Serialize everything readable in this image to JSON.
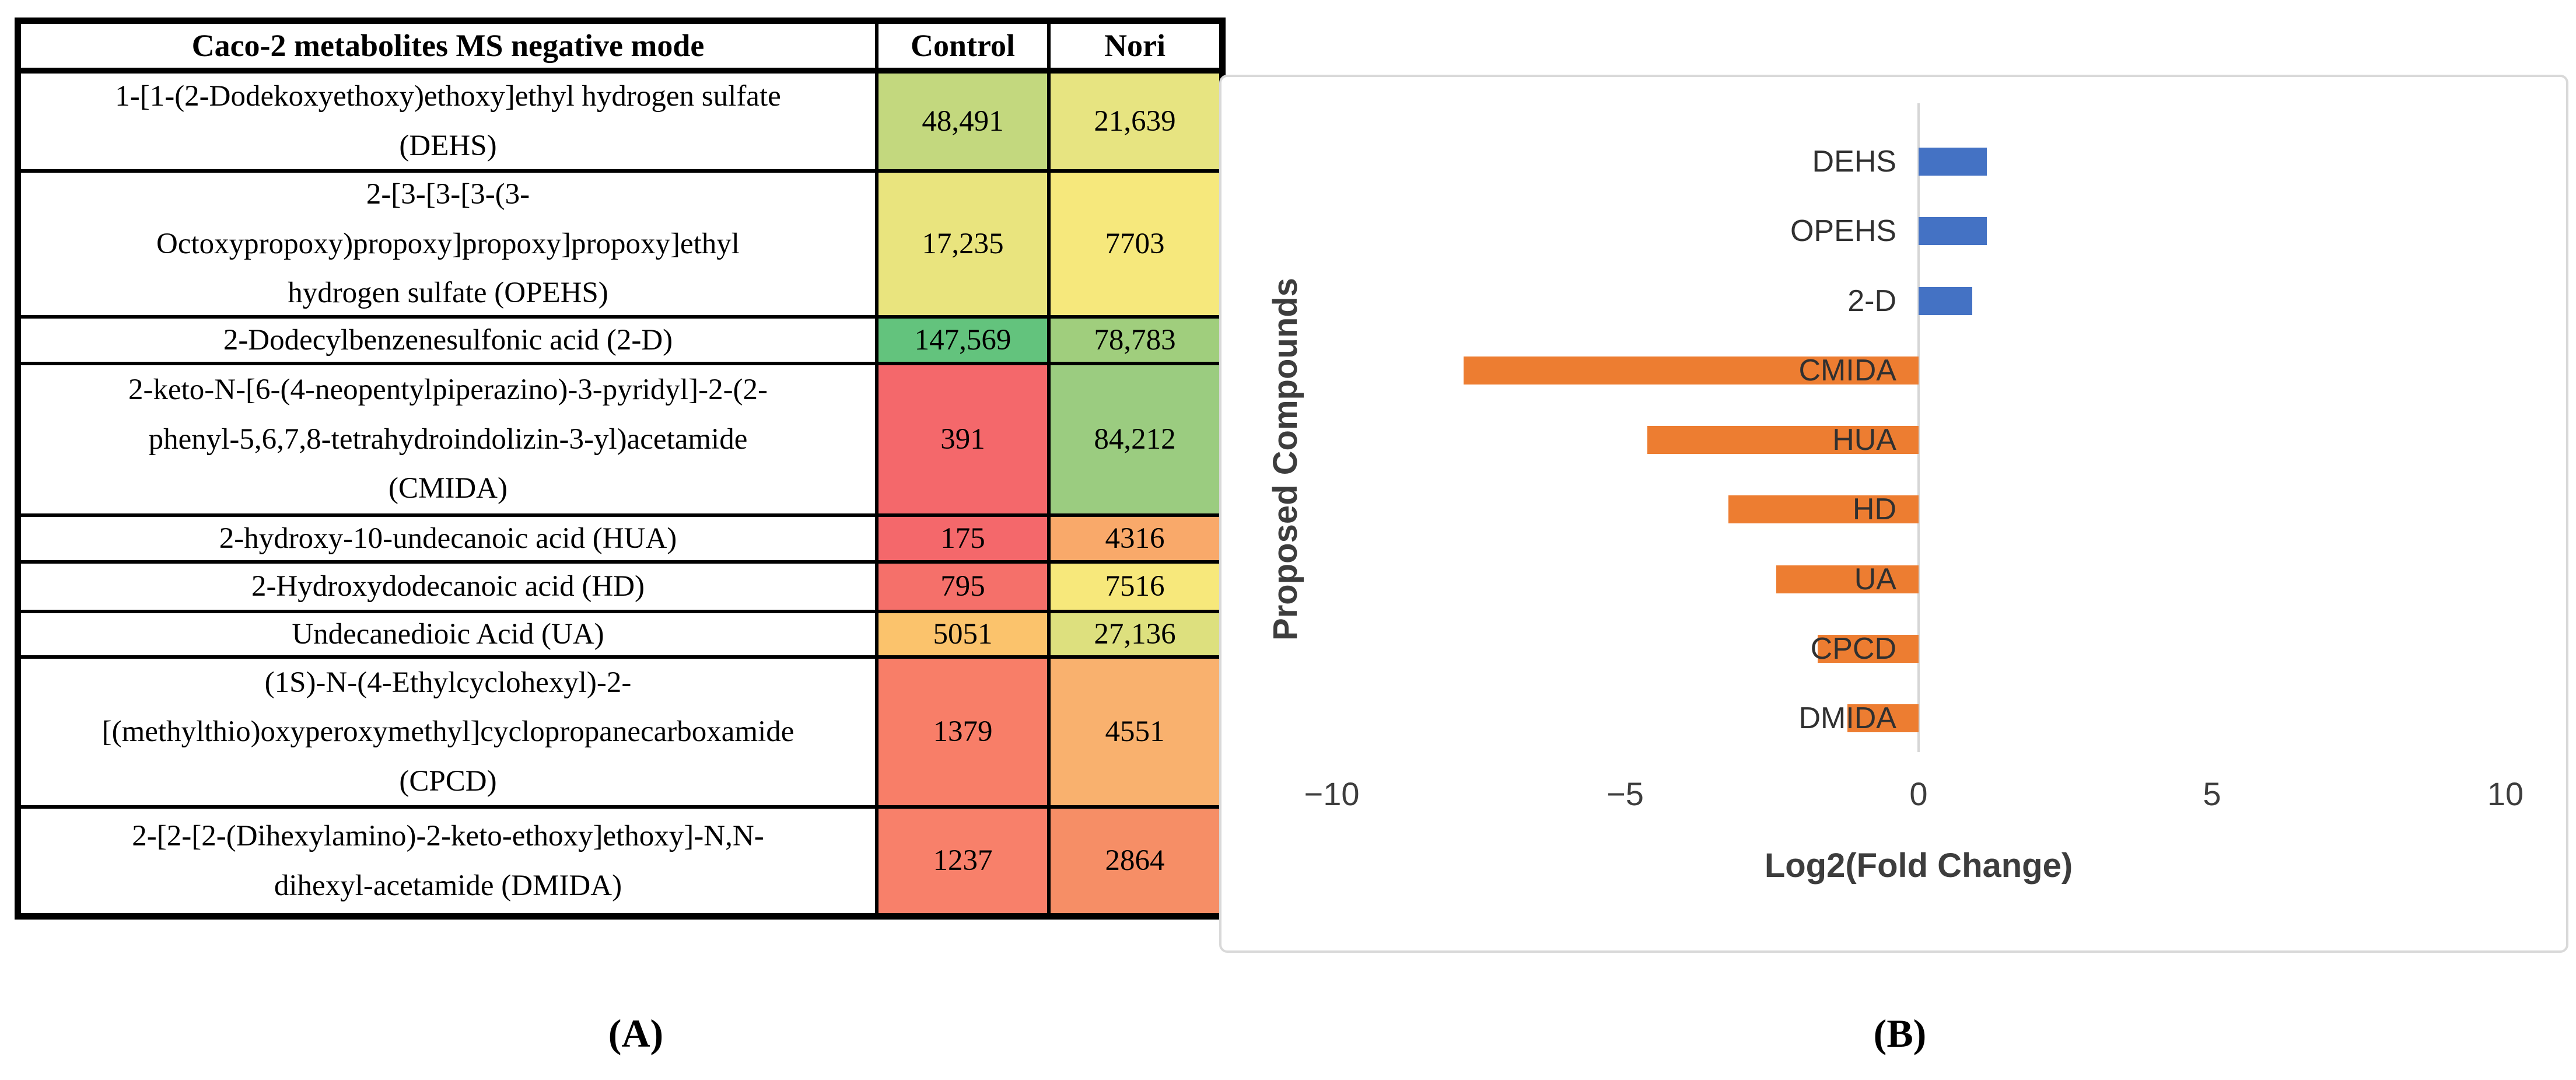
{
  "panel_a": {
    "caption": "(A)",
    "table": {
      "columns": [
        "Caco-2 metabolites MS negative mode",
        "Control",
        "Nori"
      ],
      "rows": [
        {
          "name_lines": [
            "1-[1-(2-Dodekoxyethoxy)ethoxy]ethyl hydrogen sulfate",
            "(DEHS)"
          ],
          "control": "48,491",
          "nori": "21,639",
          "control_color": "#c3d87e",
          "nori_color": "#e7e481"
        },
        {
          "name_lines": [
            "2-[3-[3-[3-(3-",
            "Octoxypropoxy)propoxy]propoxy]propoxy]ethyl",
            "hydrogen sulfate (OPEHS)"
          ],
          "control": "17,235",
          "nori": "7703",
          "control_color": "#e9e47e",
          "nori_color": "#f6e87c"
        },
        {
          "name_lines": [
            "2-Dodecylbenzenesulfonic acid (2-D)"
          ],
          "control": "147,569",
          "nori": "78,783",
          "control_color": "#63c37d",
          "nori_color": "#a0ce7d"
        },
        {
          "name_lines": [
            "2-keto-N-[6-(4-neopentylpiperazino)-3-pyridyl]-2-(2-",
            "phenyl-5,6,7,8-tetrahydroindolizin-3-yl)acetamide",
            "(CMIDA)"
          ],
          "control": "391",
          "nori": "84,212",
          "control_color": "#f4686b",
          "nori_color": "#9bcc80"
        },
        {
          "name_lines": [
            "2-hydroxy-10-undecanoic acid (HUA)"
          ],
          "control": "175",
          "nori": "4316",
          "control_color": "#f4686b",
          "nori_color": "#f9a96a"
        },
        {
          "name_lines": [
            "2-Hydroxydodecanoic acid (HD)"
          ],
          "control": "795",
          "nori": "7516",
          "control_color": "#f5706a",
          "nori_color": "#f7e87b"
        },
        {
          "name_lines": [
            "Undecanedioic Acid (UA)"
          ],
          "control": "5051",
          "nori": "27,136",
          "control_color": "#fbc36c",
          "nori_color": "#dde07e"
        },
        {
          "name_lines": [
            "(1S)-N-(4-Ethylcyclohexyl)-2-",
            "[(methylthio)oxyperoxymethyl]cyclopropanecarboxamide",
            "(CPCD)"
          ],
          "control": "1379",
          "nori": "4551",
          "control_color": "#f87e68",
          "nori_color": "#f9b16e"
        },
        {
          "name_lines": [
            "2-[2-[2-(Dihexylamino)-2-keto-ethoxy]ethoxy]-N,N-",
            "dihexyl-acetamide (DMIDA)"
          ],
          "control": "1237",
          "nori": "2864",
          "control_color": "#f8806a",
          "nori_color": "#f68e66"
        }
      ]
    }
  },
  "panel_b": {
    "caption": "(B)",
    "ylabel": "Proposed Compounds",
    "chart_data": {
      "type": "bar",
      "orientation": "horizontal",
      "title": "",
      "xlabel": "Log2(Fold Change)",
      "ylabel": "Proposed Compounds",
      "categories": [
        "DEHS",
        "OPEHS",
        "2-D",
        "CMIDA",
        "HUA",
        "HD",
        "UA",
        "CPCD",
        "DMIDA"
      ],
      "values": [
        1.16,
        1.16,
        0.91,
        -7.75,
        -4.62,
        -3.24,
        -2.43,
        -1.72,
        -1.21
      ],
      "xlim": [
        -10,
        10
      ],
      "xticks": [
        -10,
        -5,
        0,
        5,
        10
      ],
      "xtick_labels": [
        "−10",
        "−5",
        "0",
        "5",
        "10"
      ],
      "positive_color": "#4472c4",
      "negative_color": "#ed7d31",
      "grid": false,
      "legend": "none"
    }
  }
}
